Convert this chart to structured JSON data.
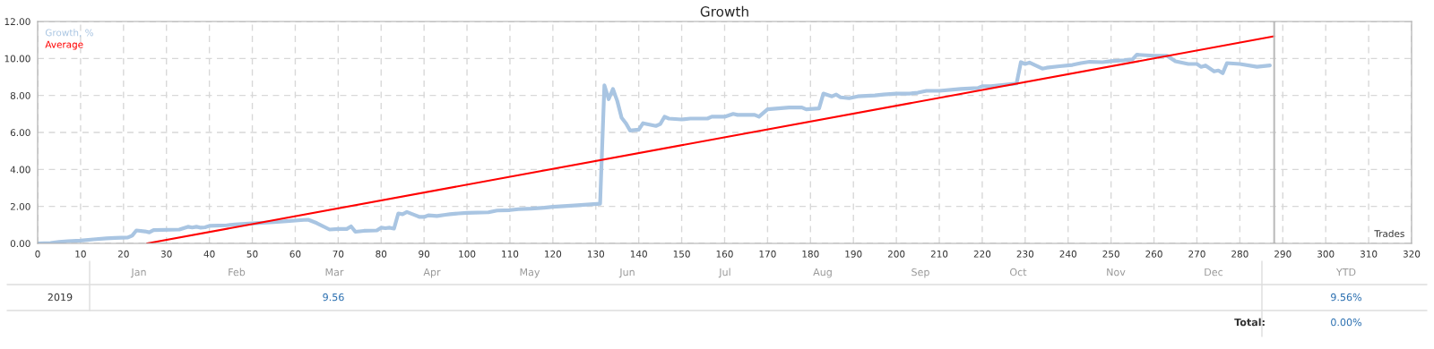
{
  "chart_data": {
    "type": "line",
    "title": "Growth",
    "xlabel": "Trades",
    "xlim": [
      0,
      320
    ],
    "ylim": [
      0,
      12
    ],
    "xticks": [
      0,
      10,
      20,
      30,
      40,
      50,
      60,
      70,
      80,
      90,
      100,
      110,
      120,
      130,
      140,
      150,
      160,
      170,
      180,
      190,
      200,
      210,
      220,
      230,
      240,
      250,
      260,
      270,
      280,
      290,
      300,
      310,
      320
    ],
    "yticks": [
      {
        "value": 0,
        "label": "0.00"
      },
      {
        "value": 2,
        "label": "2.00"
      },
      {
        "value": 4,
        "label": "4.00"
      },
      {
        "value": 6,
        "label": "6.00"
      },
      {
        "value": 8,
        "label": "8.00"
      },
      {
        "value": 10,
        "label": "10.00"
      },
      {
        "value": 12,
        "label": "12.00"
      }
    ],
    "grid": true,
    "legend": "top left",
    "marker": "none",
    "line_style": "solid",
    "series": [
      {
        "name": "Growth, %",
        "color": "#a9c5e2",
        "x": [
          0,
          3,
          5,
          7,
          10,
          13,
          16,
          18,
          21,
          22,
          23,
          25,
          26,
          27,
          33,
          35,
          36,
          37,
          38,
          39,
          40,
          44,
          46,
          50,
          55,
          58,
          62,
          63,
          65,
          68,
          70,
          72,
          73,
          74,
          76,
          79,
          80,
          81,
          82,
          83,
          84,
          85,
          86,
          88,
          89,
          90,
          91,
          93,
          95,
          96,
          98,
          100,
          105,
          107,
          110,
          112,
          115,
          118,
          120,
          125,
          128,
          131,
          132,
          133,
          134,
          135,
          136,
          137,
          138,
          140,
          141,
          144,
          145,
          146,
          147,
          150,
          152,
          156,
          157,
          160,
          162,
          163,
          167,
          168,
          170,
          175,
          178,
          179,
          182,
          183,
          185,
          186,
          187,
          189,
          191,
          195,
          197,
          200,
          203,
          205,
          207,
          210,
          215,
          219,
          220,
          222,
          224,
          226,
          228,
          229,
          230,
          231,
          234,
          235,
          238,
          241,
          243,
          245,
          248,
          250,
          253,
          255,
          256,
          260,
          263,
          265,
          268,
          270,
          271,
          272,
          274,
          275,
          276,
          277,
          280,
          284,
          287
        ],
        "values": [
          0,
          0.02,
          0.08,
          0.12,
          0.15,
          0.22,
          0.27,
          0.3,
          0.32,
          0.42,
          0.7,
          0.65,
          0.6,
          0.72,
          0.75,
          0.9,
          0.86,
          0.9,
          0.85,
          0.87,
          0.95,
          0.98,
          1.02,
          1.08,
          1.15,
          1.2,
          1.27,
          1.28,
          1.1,
          0.75,
          0.78,
          0.78,
          0.92,
          0.63,
          0.68,
          0.7,
          0.85,
          0.82,
          0.85,
          0.8,
          1.62,
          1.58,
          1.7,
          1.52,
          1.43,
          1.43,
          1.52,
          1.48,
          1.55,
          1.58,
          1.62,
          1.65,
          1.68,
          1.78,
          1.8,
          1.85,
          1.88,
          1.93,
          1.98,
          2.05,
          2.1,
          2.15,
          8.55,
          7.8,
          8.35,
          7.7,
          6.8,
          6.5,
          6.1,
          6.15,
          6.5,
          6.35,
          6.45,
          6.85,
          6.75,
          6.7,
          6.75,
          6.75,
          6.85,
          6.85,
          7.0,
          6.95,
          6.95,
          6.85,
          7.25,
          7.35,
          7.35,
          7.25,
          7.3,
          8.1,
          7.95,
          8.05,
          7.9,
          7.85,
          7.95,
          8.0,
          8.05,
          8.1,
          8.1,
          8.15,
          8.25,
          8.25,
          8.35,
          8.4,
          8.5,
          8.5,
          8.55,
          8.6,
          8.65,
          9.8,
          9.7,
          9.78,
          9.45,
          9.5,
          9.58,
          9.65,
          9.75,
          9.82,
          9.8,
          9.85,
          9.9,
          9.95,
          10.2,
          10.15,
          10.15,
          9.85,
          9.7,
          9.7,
          9.55,
          9.62,
          9.3,
          9.35,
          9.2,
          9.75,
          9.7,
          9.55,
          9.62
        ]
      },
      {
        "name": "Average",
        "color": "#ff0000",
        "x": [
          25.5,
          288
        ],
        "values": [
          0,
          11.2
        ]
      }
    ],
    "ref_lines": [
      {
        "axis": "x",
        "value": 288,
        "color": "#bbbbbb",
        "line_style": "solid"
      }
    ],
    "annotations": [
      "Jan",
      "Feb",
      "Mar",
      "Apr",
      "May",
      "Jun",
      "Jul",
      "Aug",
      "Sep",
      "Oct",
      "Nov",
      "Dec",
      "YTD",
      "2019",
      "9.56",
      "9.56%",
      "Total:",
      "0.00%"
    ]
  }
}
